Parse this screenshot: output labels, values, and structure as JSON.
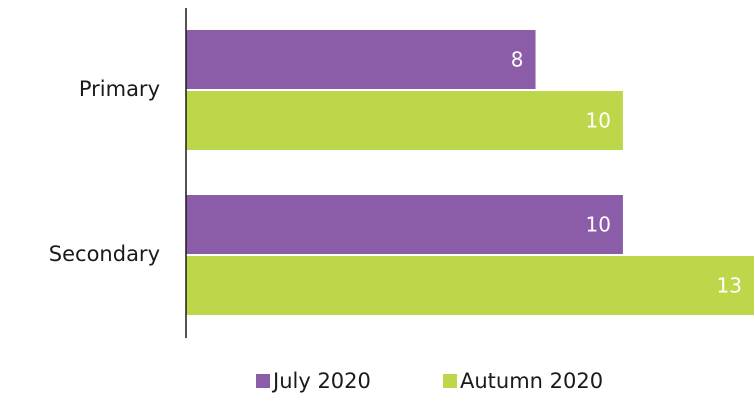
{
  "chart_data": {
    "type": "bar",
    "orientation": "horizontal",
    "categories": [
      "Primary",
      "Secondary"
    ],
    "series": [
      {
        "name": "July 2020",
        "values": [
          8,
          10
        ],
        "color": "#8b5ca8"
      },
      {
        "name": "Autumn 2020",
        "values": [
          10,
          13
        ],
        "color": "#bcd84a"
      }
    ],
    "xlim": [
      0,
      13
    ],
    "grid": false,
    "data_labels": true,
    "legend_position": "bottom"
  }
}
